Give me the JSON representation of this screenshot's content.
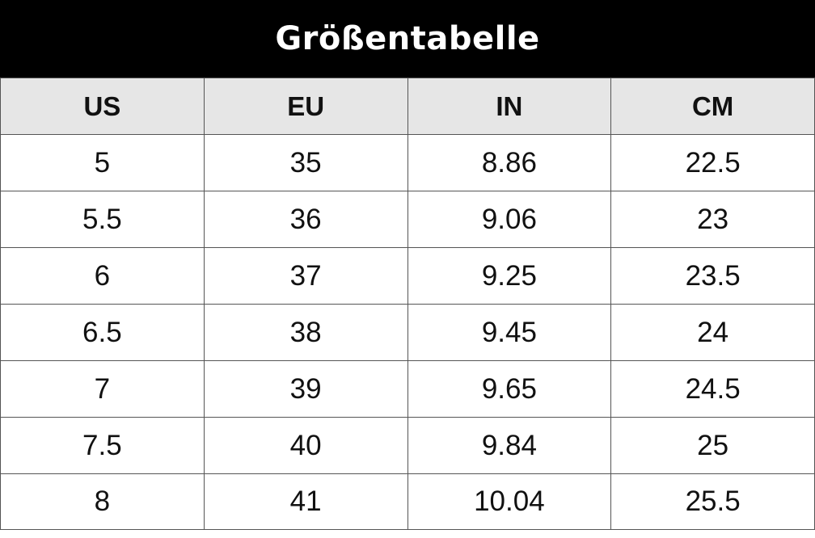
{
  "title": "Größentabelle",
  "table": {
    "headers": [
      "US",
      "EU",
      "IN",
      "CM"
    ],
    "rows": [
      [
        "5",
        "35",
        "8.86",
        "22.5"
      ],
      [
        "5.5",
        "36",
        "9.06",
        "23"
      ],
      [
        "6",
        "37",
        "9.25",
        "23.5"
      ],
      [
        "6.5",
        "38",
        "9.45",
        "24"
      ],
      [
        "7",
        "39",
        "9.65",
        "24.5"
      ],
      [
        "7.5",
        "40",
        "9.84",
        "25"
      ],
      [
        "8",
        "41",
        "10.04",
        "25.5"
      ]
    ]
  },
  "colors": {
    "title_background": "#000000",
    "title_text": "#ffffff",
    "header_background": "#e6e6e6",
    "grid_lines": "#555555"
  }
}
